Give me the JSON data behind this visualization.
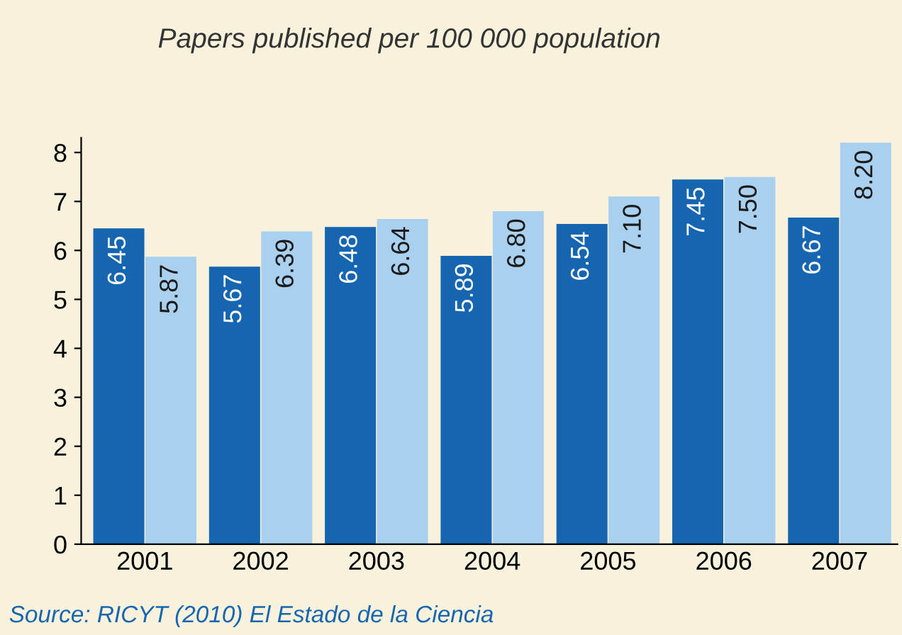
{
  "chart_data": {
    "type": "bar",
    "title": "Papers published per 100 000 population",
    "categories": [
      "2001",
      "2002",
      "2003",
      "2004",
      "2005",
      "2006",
      "2007"
    ],
    "series": [
      {
        "color": "#1565b0",
        "values": [
          6.45,
          5.67,
          6.48,
          5.89,
          6.54,
          7.45,
          6.67
        ],
        "value_labels": [
          "6.45",
          "5.67",
          "6.48",
          "5.89",
          "6.54",
          "7.45",
          "6.67"
        ]
      },
      {
        "color": "#a9d0ee",
        "values": [
          5.87,
          6.39,
          6.64,
          6.8,
          7.1,
          7.5,
          8.2
        ],
        "value_labels": [
          "5.87",
          "6.39",
          "6.64",
          "6.80",
          "7.10",
          "7.50",
          "8.20"
        ]
      }
    ],
    "ylim": [
      0,
      8.3
    ],
    "yticks": [
      0,
      1,
      2,
      3,
      4,
      5,
      6,
      7,
      8
    ],
    "grid": false,
    "legend": false,
    "annotations": [
      "Source: RICYT (2010) El Estado de la Ciencia"
    ]
  }
}
